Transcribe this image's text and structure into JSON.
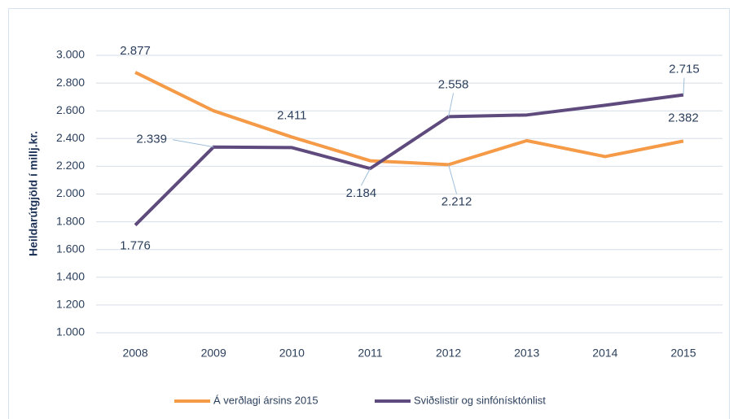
{
  "chart_data": {
    "type": "line",
    "y_label": "Heildarútgjöld í millj.kr.",
    "categories": [
      "2008",
      "2009",
      "2010",
      "2011",
      "2012",
      "2013",
      "2014",
      "2015"
    ],
    "series": [
      {
        "name": "Á verðlagi ársins 2015",
        "color": "#f59a46",
        "values": [
          2877,
          2600,
          2411,
          2240,
          2212,
          2385,
          2270,
          2382
        ],
        "value_labels": [
          "2.877",
          null,
          "2.411",
          null,
          "2.212",
          null,
          null,
          "2.382"
        ]
      },
      {
        "name": "Sviðslistir og sinfónísktónlist",
        "color": "#5f4a7d",
        "values": [
          1776,
          2339,
          2335,
          2184,
          2558,
          2570,
          2640,
          2715
        ],
        "value_labels": [
          "1.776",
          "2.339",
          null,
          "2.184",
          "2.558",
          null,
          null,
          "2.715"
        ]
      }
    ],
    "ylim": [
      1000,
      3000
    ],
    "yticks": [
      {
        "value": 1000,
        "label": "1.000"
      },
      {
        "value": 1200,
        "label": "1.200"
      },
      {
        "value": 1400,
        "label": "1.400"
      },
      {
        "value": 1600,
        "label": "1.600"
      },
      {
        "value": 1800,
        "label": "1.800"
      },
      {
        "value": 2000,
        "label": "2.000"
      },
      {
        "value": 2200,
        "label": "2.200"
      },
      {
        "value": 2400,
        "label": "2.400"
      },
      {
        "value": 2600,
        "label": "2.600"
      },
      {
        "value": 2800,
        "label": "2.800"
      },
      {
        "value": 3000,
        "label": "3.000"
      }
    ],
    "grid": true,
    "legend": "bottom"
  }
}
